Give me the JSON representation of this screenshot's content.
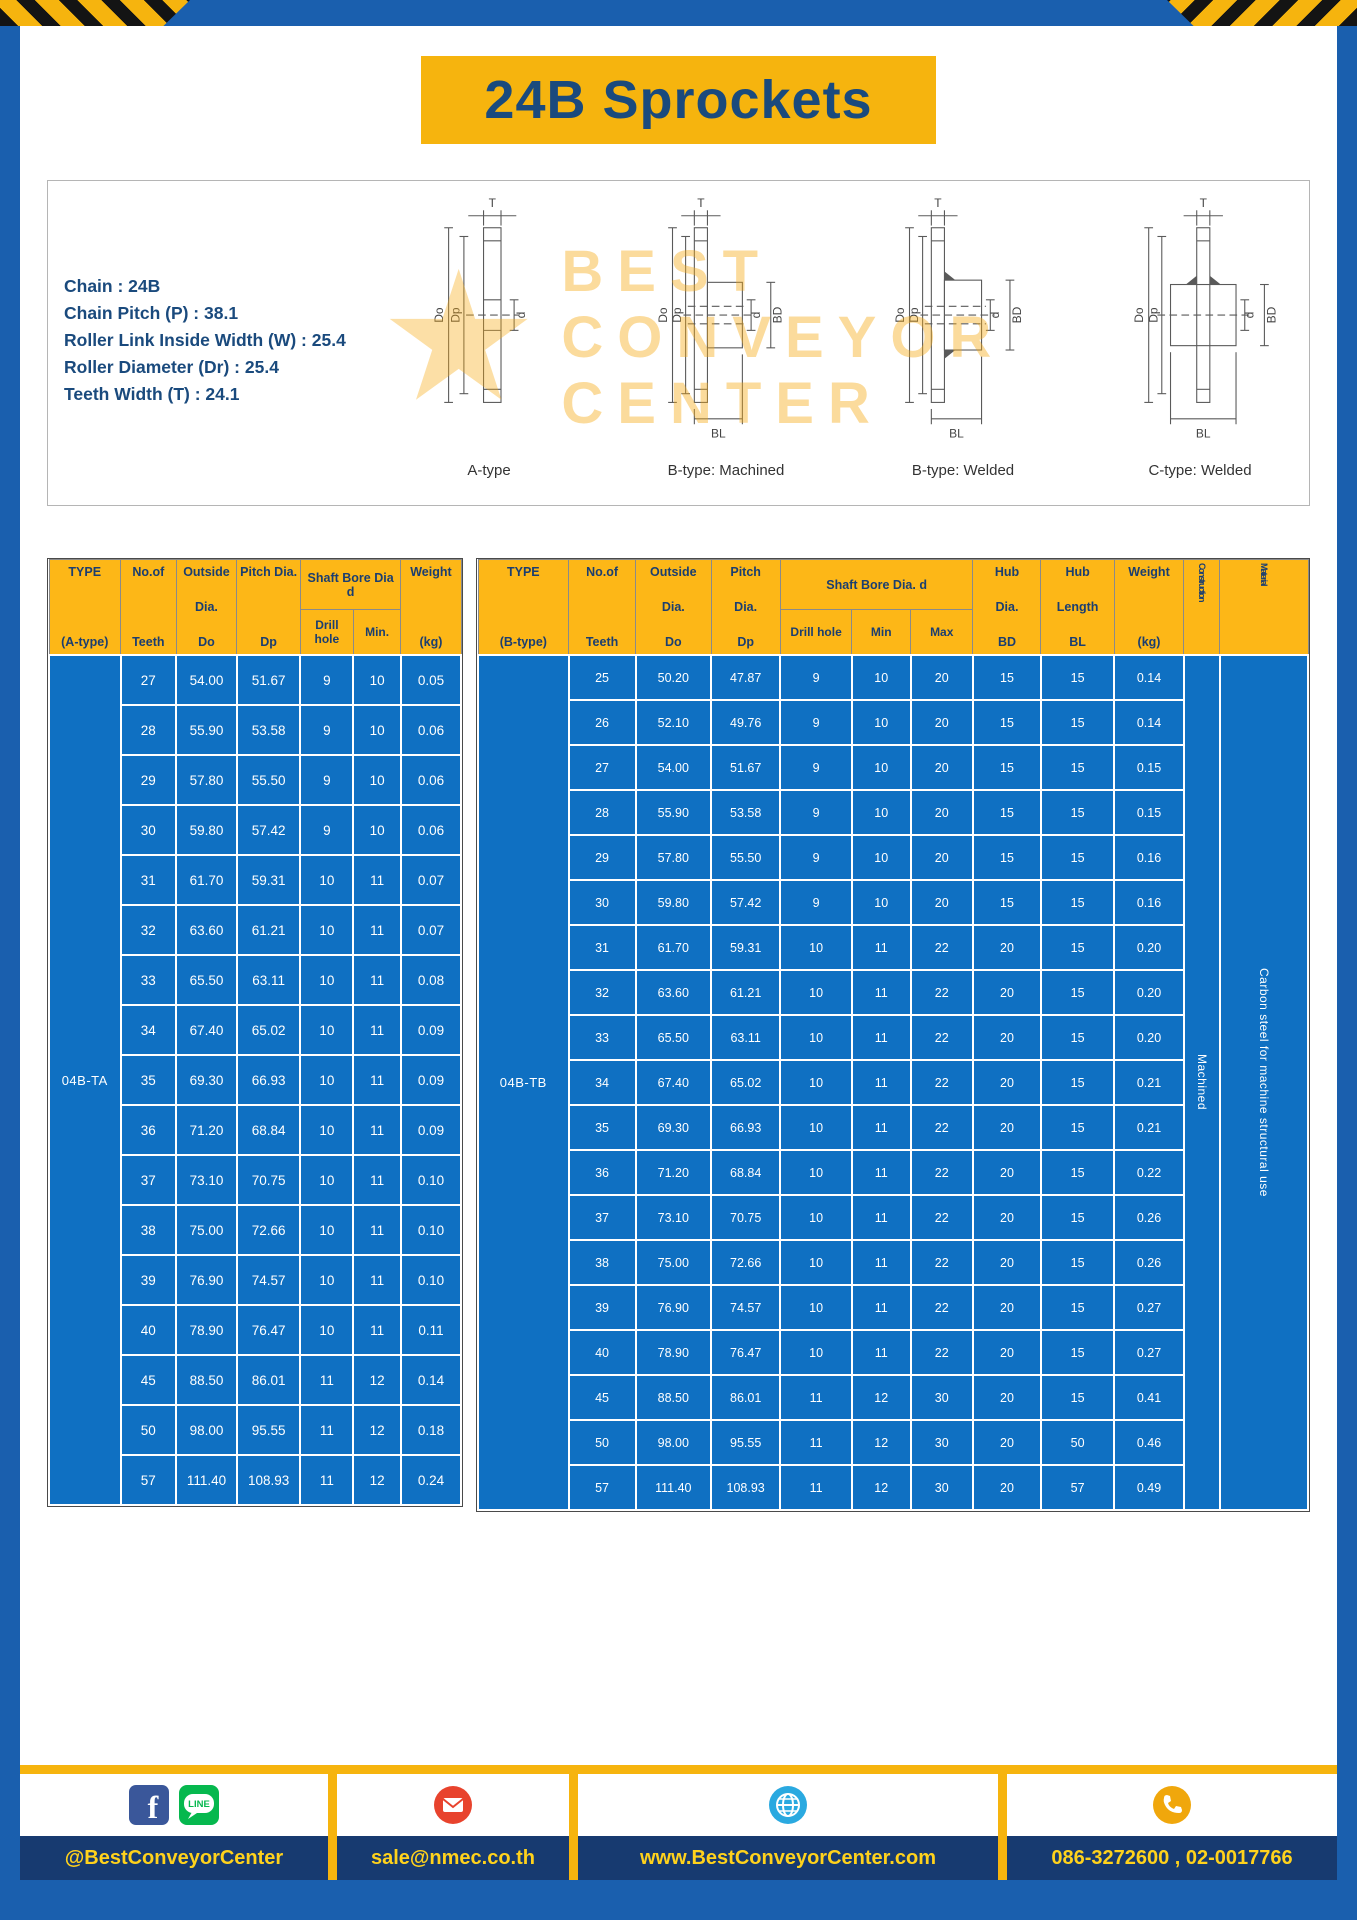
{
  "page": {
    "title": "24B Sprockets"
  },
  "specs": {
    "lines": [
      "Chain : 24B",
      "Chain Pitch (P) : 38.1",
      "Roller Link Inside Width (W) : 25.4",
      "Roller Diameter (Dr) : 25.4",
      "Teeth Width (T) : 24.1"
    ]
  },
  "diagram": {
    "watermark": "BEST CONVEYOR CENTER",
    "watermark_star": "★",
    "types": [
      "A-type",
      "B-type: Machined",
      "B-type: Welded",
      "C-type: Welded"
    ],
    "dims": {
      "t": "T",
      "do": "Do",
      "dp": "Dp",
      "d": "d",
      "bd": "BD",
      "bl": "BL"
    }
  },
  "table_a": {
    "header": {
      "type": [
        "TYPE",
        "(A-type)"
      ],
      "teeth": [
        "No.of",
        "Teeth"
      ],
      "outside": [
        "Outside",
        "Dia.",
        "Do"
      ],
      "pitch": [
        "Pitch Dia.",
        "Dp"
      ],
      "shaft": "Shaft Bore Dia d",
      "drill": "Drill hole",
      "min": "Min.",
      "weight": [
        "Weight",
        "(kg)"
      ]
    },
    "type_value": "04B-TA",
    "rows": [
      [
        "27",
        "54.00",
        "51.67",
        "9",
        "10",
        "0.05"
      ],
      [
        "28",
        "55.90",
        "53.58",
        "9",
        "10",
        "0.06"
      ],
      [
        "29",
        "57.80",
        "55.50",
        "9",
        "10",
        "0.06"
      ],
      [
        "30",
        "59.80",
        "57.42",
        "9",
        "10",
        "0.06"
      ],
      [
        "31",
        "61.70",
        "59.31",
        "10",
        "11",
        "0.07"
      ],
      [
        "32",
        "63.60",
        "61.21",
        "10",
        "11",
        "0.07"
      ],
      [
        "33",
        "65.50",
        "63.11",
        "10",
        "11",
        "0.08"
      ],
      [
        "34",
        "67.40",
        "65.02",
        "10",
        "11",
        "0.09"
      ],
      [
        "35",
        "69.30",
        "66.93",
        "10",
        "11",
        "0.09"
      ],
      [
        "36",
        "71.20",
        "68.84",
        "10",
        "11",
        "0.09"
      ],
      [
        "37",
        "73.10",
        "70.75",
        "10",
        "11",
        "0.10"
      ],
      [
        "38",
        "75.00",
        "72.66",
        "10",
        "11",
        "0.10"
      ],
      [
        "39",
        "76.90",
        "74.57",
        "10",
        "11",
        "0.10"
      ],
      [
        "40",
        "78.90",
        "76.47",
        "10",
        "11",
        "0.11"
      ],
      [
        "45",
        "88.50",
        "86.01",
        "11",
        "12",
        "0.14"
      ],
      [
        "50",
        "98.00",
        "95.55",
        "11",
        "12",
        "0.18"
      ],
      [
        "57",
        "111.40",
        "108.93",
        "11",
        "12",
        "0.24"
      ]
    ]
  },
  "table_b": {
    "header": {
      "type": [
        "TYPE",
        "(B-type)"
      ],
      "teeth": [
        "No.of",
        "Teeth"
      ],
      "outside": [
        "Outside",
        "Dia.",
        "Do"
      ],
      "pitch": [
        "Pitch",
        "Dia.",
        "Dp"
      ],
      "shaft": "Shaft Bore Dia. d",
      "drill": "Drill hole",
      "min": "Min",
      "max": "Max",
      "hub_dia": [
        "Hub",
        "Dia.",
        "BD"
      ],
      "hub_len": [
        "Hub",
        "Length",
        "BL"
      ],
      "weight": [
        "Weight",
        "(kg)"
      ],
      "construction": "Construction",
      "material": "Material"
    },
    "type_value": "04B-TB",
    "construction_value": "Machined",
    "material_value": "Carbon steel for machine structural use",
    "rows": [
      [
        "25",
        "50.20",
        "47.87",
        "9",
        "10",
        "20",
        "15",
        "15",
        "0.14"
      ],
      [
        "26",
        "52.10",
        "49.76",
        "9",
        "10",
        "20",
        "15",
        "15",
        "0.14"
      ],
      [
        "27",
        "54.00",
        "51.67",
        "9",
        "10",
        "20",
        "15",
        "15",
        "0.15"
      ],
      [
        "28",
        "55.90",
        "53.58",
        "9",
        "10",
        "20",
        "15",
        "15",
        "0.15"
      ],
      [
        "29",
        "57.80",
        "55.50",
        "9",
        "10",
        "20",
        "15",
        "15",
        "0.16"
      ],
      [
        "30",
        "59.80",
        "57.42",
        "9",
        "10",
        "20",
        "15",
        "15",
        "0.16"
      ],
      [
        "31",
        "61.70",
        "59.31",
        "10",
        "11",
        "22",
        "20",
        "15",
        "0.20"
      ],
      [
        "32",
        "63.60",
        "61.21",
        "10",
        "11",
        "22",
        "20",
        "15",
        "0.20"
      ],
      [
        "33",
        "65.50",
        "63.11",
        "10",
        "11",
        "22",
        "20",
        "15",
        "0.20"
      ],
      [
        "34",
        "67.40",
        "65.02",
        "10",
        "11",
        "22",
        "20",
        "15",
        "0.21"
      ],
      [
        "35",
        "69.30",
        "66.93",
        "10",
        "11",
        "22",
        "20",
        "15",
        "0.21"
      ],
      [
        "36",
        "71.20",
        "68.84",
        "10",
        "11",
        "22",
        "20",
        "15",
        "0.22"
      ],
      [
        "37",
        "73.10",
        "70.75",
        "10",
        "11",
        "22",
        "20",
        "15",
        "0.26"
      ],
      [
        "38",
        "75.00",
        "72.66",
        "10",
        "11",
        "22",
        "20",
        "15",
        "0.26"
      ],
      [
        "39",
        "76.90",
        "74.57",
        "10",
        "11",
        "22",
        "20",
        "15",
        "0.27"
      ],
      [
        "40",
        "78.90",
        "76.47",
        "10",
        "11",
        "22",
        "20",
        "15",
        "0.27"
      ],
      [
        "45",
        "88.50",
        "86.01",
        "11",
        "12",
        "30",
        "20",
        "15",
        "0.41"
      ],
      [
        "50",
        "98.00",
        "95.55",
        "11",
        "12",
        "30",
        "20",
        "50",
        "0.46"
      ],
      [
        "57",
        "111.40",
        "108.93",
        "11",
        "12",
        "30",
        "20",
        "57",
        "0.49"
      ]
    ]
  },
  "footer": {
    "facebook_letter": "f",
    "line_text": "LINE",
    "items": [
      {
        "icons": [
          "facebook-icon",
          "line-icon"
        ],
        "label": "@BestConveyorCenter"
      },
      {
        "icons": [
          "email-icon"
        ],
        "label": "sale@nmec.co.th"
      },
      {
        "icons": [
          "globe-icon"
        ],
        "label": "www.BestConveyorCenter.com"
      },
      {
        "icons": [
          "phone-icon"
        ],
        "label": "086-3272600 , 02-0017766"
      }
    ]
  },
  "colors": {
    "frame_blue": "#1a5fae",
    "accent_yellow": "#f6b40e",
    "table_header_yellow": "#fdb717",
    "table_body_blue": "#0f70c2",
    "navy_text": "#1a4a7d",
    "footer_band_blue": "#173a70",
    "footer_text_yellow": "#ffd21c",
    "watermark_orange": "#f6aa14"
  }
}
